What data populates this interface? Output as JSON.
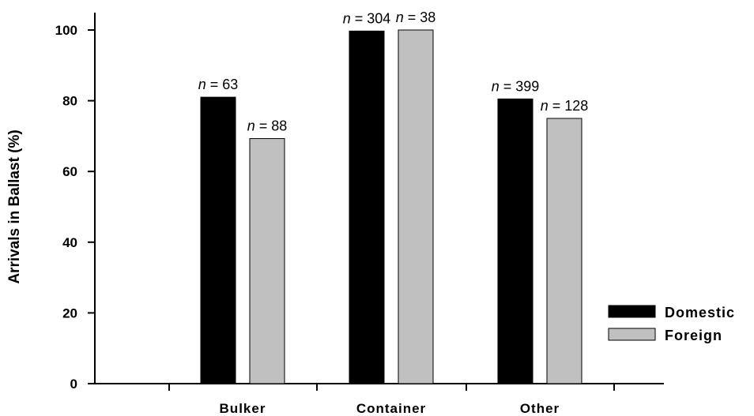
{
  "chart_data": {
    "type": "bar",
    "categories": [
      "Bulker",
      "Container",
      "Other"
    ],
    "series": [
      {
        "name": "Domestic",
        "color": "#000000",
        "values": [
          81,
          99.7,
          80.5
        ],
        "labels": [
          "63",
          "304",
          "399"
        ]
      },
      {
        "name": "Foreign",
        "color": "#c0c0c0",
        "values": [
          69.3,
          100,
          75
        ],
        "labels": [
          "88",
          "38",
          "128"
        ]
      }
    ],
    "label_prefix": "n",
    "label_infix": " = ",
    "xlabel": "",
    "ylabel": "Arrivals in Ballast (%)",
    "ylim": [
      0,
      100
    ],
    "yticks": [
      0,
      20,
      40,
      60,
      80,
      100
    ],
    "grid": false,
    "legend_position": "lower-right"
  }
}
